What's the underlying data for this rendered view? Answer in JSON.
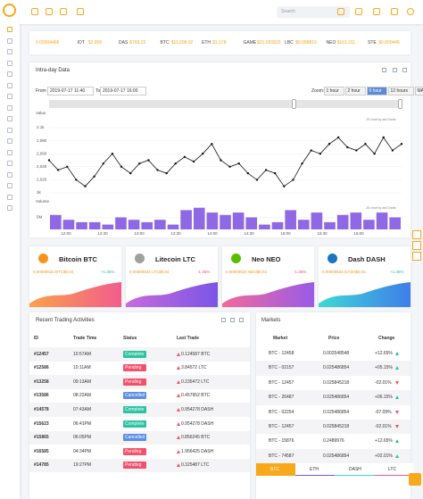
{
  "search_placeholder": "Search",
  "ticker": [
    {
      "price": "0.00004466"
    },
    {
      "name": "IOT",
      "price": "$2.958"
    },
    {
      "name": "DAS",
      "price": "$769.22"
    },
    {
      "name": "BTC",
      "price": "$11,008.02"
    },
    {
      "name": "ETH",
      "price": "$1,578"
    },
    {
      "name": "GAME",
      "price": "$21.020823"
    },
    {
      "name": "LBC",
      "price": "$0.098819"
    },
    {
      "name": "NEO",
      "price": "$161.311"
    },
    {
      "name": "STE",
      "price": "$0.000445"
    }
  ],
  "intraday": {
    "title": "Intra-day Data",
    "from_label": "From",
    "from": "2019-07-17 11:40",
    "to_label": "To",
    "to": "2019-07-17 16:00",
    "zoom_label": "Zoom:",
    "zoom_options": [
      "1 hour",
      "2 hour",
      "5 hour",
      "12 hours",
      "MAX"
    ],
    "zoom_active": 2,
    "credit": "JS chart by amCharts",
    "chart_data": [
      {
        "type": "line",
        "y_label": "Value",
        "color": "#111111",
        "ylim": [
          2000,
          2100
        ],
        "yticks": [
          {
            "value": 2000,
            "label": "2k"
          },
          {
            "value": 2020,
            "label": "2,020"
          },
          {
            "value": 2040,
            "label": "2,040"
          },
          {
            "value": 2060,
            "label": "2,060"
          },
          {
            "value": 2080,
            "label": "2,080"
          },
          {
            "value": 2100,
            "label": "2.1k"
          }
        ],
        "values": [
          2050,
          2035,
          2040,
          2020,
          2010,
          2025,
          2045,
          2060,
          2040,
          2030,
          2045,
          2050,
          2035,
          2030,
          2045,
          2055,
          2048,
          2060,
          2075,
          2050,
          2040,
          2045,
          2030,
          2020,
          2035,
          2030,
          2010,
          2020,
          2045,
          2065,
          2060,
          2075,
          2085,
          2070,
          2065,
          2075,
          2060,
          2085,
          2065,
          2075
        ]
      },
      {
        "type": "bar",
        "y_label": "Volume",
        "color": "#7b4fe0",
        "ylim": [
          0,
          10000000
        ],
        "yticks": [
          {
            "value": 5000000,
            "label": "5M"
          }
        ],
        "values": [
          6000000,
          4000000,
          3000000,
          3000000,
          2000000,
          5000000,
          4000000,
          3000000,
          4000000,
          2000000,
          8000000,
          9000000,
          7000000,
          6000000,
          7000000,
          5000000,
          2000000,
          3000000,
          8000000,
          4000000,
          7000000,
          3000000,
          6000000,
          7000000,
          4000000,
          7000000,
          5000000
        ],
        "xticks": [
          "12:00",
          "12:30",
          "13:00",
          "13:30",
          "14:00",
          "14:30",
          "15:00",
          "15:30",
          "16:00"
        ]
      }
    ]
  },
  "coins": [
    {
      "name": "Bitcoin BTC",
      "price": "0.00000634 BTC$0.04",
      "change": "+1.35%",
      "color": "#f7931a",
      "grad": [
        "#f9a14a",
        "#f25d8d"
      ]
    },
    {
      "name": "Litecoin LTC",
      "price": "0.00000634 LTC$0.04",
      "change": "-1.35%",
      "color": "#a0a0a0",
      "grad": [
        "#c86bdc",
        "#7b55e6"
      ]
    },
    {
      "name": "Neo NEO",
      "price": "0.00000634 NEO$0.04",
      "change": "-1.35%",
      "color": "#58bf00",
      "grad": [
        "#f26a9a",
        "#9a5be8"
      ]
    },
    {
      "name": "Dash DASH",
      "price": "0.00000634 DASH$0.04",
      "change": "+1.35%",
      "color": "#1c75bc",
      "grad": [
        "#3fd7d7",
        "#3f7ee8"
      ]
    }
  ],
  "trades": {
    "title": "Recent Trading Activities",
    "columns": [
      "ID",
      "Trade Time",
      "Status",
      "Last Trade"
    ],
    "rows": [
      [
        "#12457",
        "10:57AM",
        "Complete",
        "0.124587 BTC"
      ],
      [
        "#12586",
        "10:11AM",
        "Pending",
        "3.84572 LTC"
      ],
      [
        "#13258",
        "09:13AM",
        "Pending",
        "0.235472 LTC"
      ],
      [
        "#13586",
        "08:22AM",
        "Cancelled",
        "0.457952 BTC"
      ],
      [
        "#14578",
        "07:43AM",
        "Complete",
        "0.954278 DASH"
      ],
      [
        "#15623",
        "06:41PM",
        "Complete",
        "0.954278 DASH"
      ],
      [
        "#15865",
        "06:05PM",
        "Cancelled",
        "0.856245 BTC"
      ],
      [
        "#16585",
        "04:34PM",
        "Pending",
        "1.956425 DASH"
      ],
      [
        "#14785",
        "19:27PM",
        "Pending",
        "0.325487 LTC"
      ]
    ],
    "status_colors": [
      "#2bc3a0",
      "#f4516c",
      "#f4516c",
      "#5d8ee8",
      "#2bc3a0",
      "#2bc3a0",
      "#5d8ee8",
      "#f4516c",
      "#f4516c"
    ]
  },
  "markets": {
    "title": "Markets",
    "columns": [
      "Market",
      "Price",
      "Change"
    ],
    "rows": [
      [
        "BTC - 12458",
        "0.002548548",
        "+12.65%"
      ],
      [
        "BTC - 02157",
        "0.025486854",
        "+05.15%"
      ],
      [
        "BTC - 12457",
        "0.025845218",
        "-02.01%"
      ],
      [
        "BTC - 26487",
        "0.025486854",
        "+06.15%"
      ],
      [
        "BTC - 02254",
        "0.025486854",
        "-07.09%"
      ],
      [
        "BTC - 12457",
        "0.025845218",
        "-02.01%"
      ],
      [
        "BTC - 15876",
        "0.2489976",
        "+12.65%"
      ],
      [
        "BTC - 74587",
        "0.025486854",
        "+02.01%"
      ],
      [
        "BTC - 12457",
        "0.025845218",
        "-02.01%"
      ]
    ],
    "tabs": [
      "BTC",
      "ETH",
      "DASH",
      "LTC"
    ],
    "tab_active": 0
  }
}
